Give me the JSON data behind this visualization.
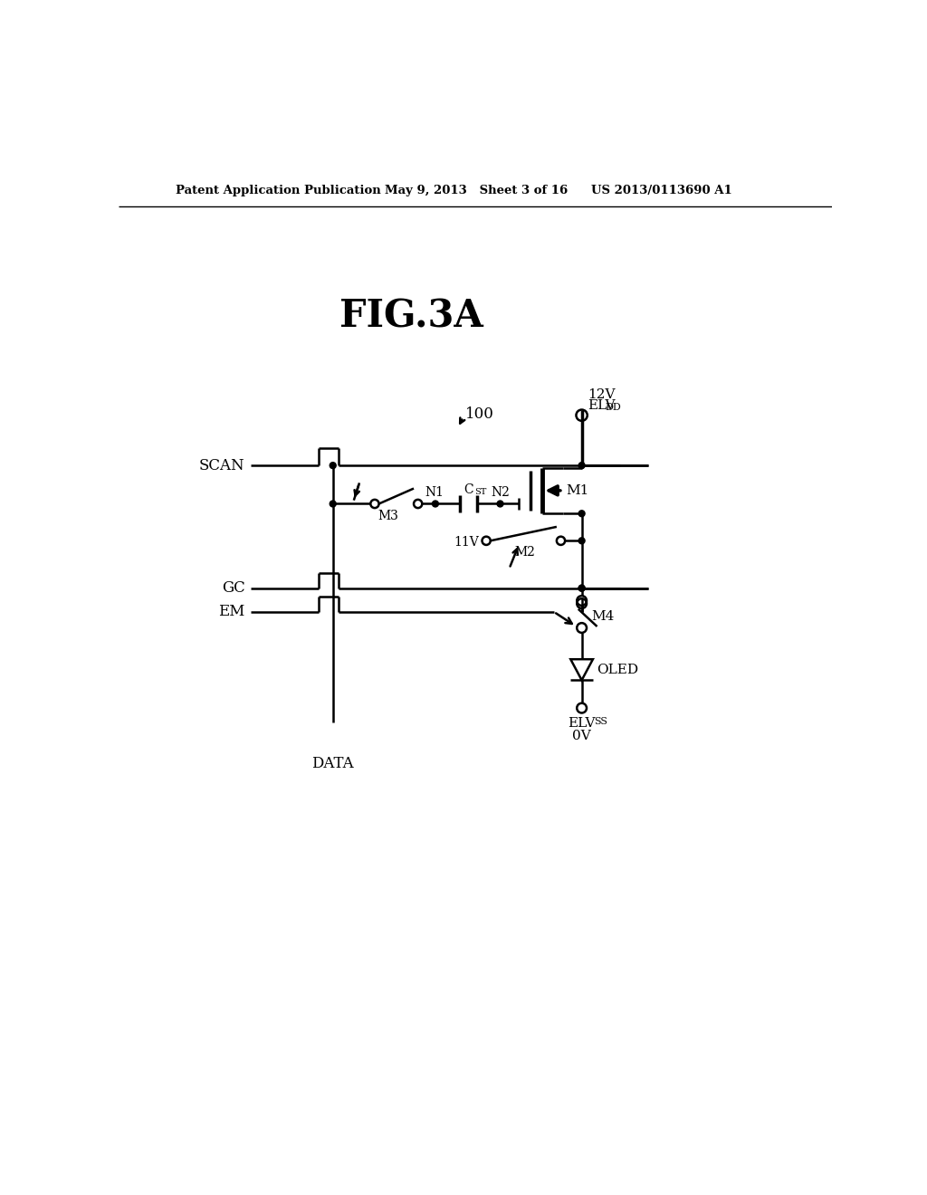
{
  "title": "FIG.3A",
  "header_left": "Patent Application Publication",
  "header_mid": "May 9, 2013   Sheet 3 of 16",
  "header_right": "US 2013/0113690 A1",
  "label_100": "100",
  "label_12V": "12V",
  "label_ELVDD": "ELV",
  "label_ELVDD_sub": "DD",
  "label_11V": "11V",
  "label_SCAN": "SCAN",
  "label_GC": "GC",
  "label_EM": "EM",
  "label_DATA": "DATA",
  "label_N1": "N1",
  "label_N2": "N2",
  "label_CST": "C",
  "label_CST_sub": "ST",
  "label_M1": "M1",
  "label_M2": "M2",
  "label_M3": "M3",
  "label_M4": "M4",
  "label_OLED": "OLED",
  "label_ELVSS": "ELV",
  "label_ELVSS_sub": "SS",
  "label_0V": "0V",
  "bg_color": "#ffffff",
  "line_color": "#000000"
}
